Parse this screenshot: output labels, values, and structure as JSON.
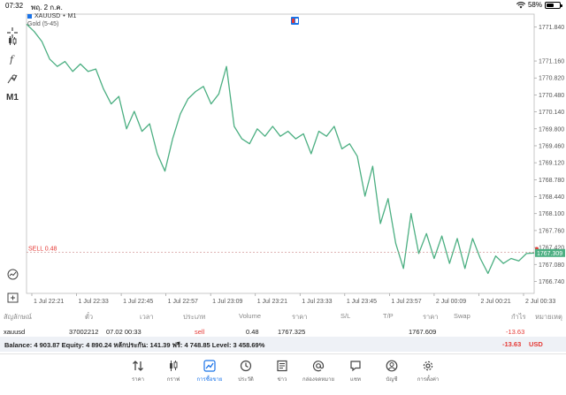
{
  "status_bar": {
    "time": "07:32",
    "date": "พฤ. 2 ก.ค.",
    "battery": "58%",
    "battery_level": 0.58
  },
  "chart": {
    "symbol": "XAUUSD",
    "timeframe": "M1",
    "separator": "•",
    "indicator": "Gold (5-45)",
    "line_color": "#4caf82",
    "sell_label": "SELL  0.48",
    "sell_price": 1767.325,
    "current_price_label": "1767.309",
    "price_ticks": [
      "1771.840",
      "1771.160",
      "1770.820",
      "1770.480",
      "1770.140",
      "1769.800",
      "1769.460",
      "1769.120",
      "1768.780",
      "1768.440",
      "1768.100",
      "1767.760",
      "1767.420",
      "1767.080",
      "1766.740"
    ],
    "price_tick_values": [
      1771.84,
      1771.16,
      1770.82,
      1770.48,
      1770.14,
      1769.8,
      1769.46,
      1769.12,
      1768.78,
      1768.44,
      1768.1,
      1767.76,
      1767.42,
      1767.08,
      1766.74
    ],
    "time_ticks": [
      "1 Jul 22:21",
      "1 Jul 22:33",
      "1 Jul 22:45",
      "1 Jul 22:57",
      "1 Jul 23:09",
      "1 Jul 23:21",
      "1 Jul 23:33",
      "1 Jul 23:45",
      "1 Jul 23:57",
      "2 Jul 00:09",
      "2 Jul 00:21",
      "2 Jul 00:33"
    ],
    "price_range": [
      1766.5,
      1772.1
    ]
  },
  "chart_data": {
    "type": "line",
    "x_range": [
      0,
      132
    ],
    "ylim": [
      1766.5,
      1772.1
    ],
    "series": [
      {
        "x": [
          0,
          2,
          4,
          6,
          8,
          10,
          12,
          14,
          16,
          18,
          20,
          22,
          24,
          26,
          28,
          30,
          32,
          34,
          36,
          38,
          40,
          42,
          44,
          46,
          48,
          50,
          52,
          54,
          56,
          58,
          60,
          62,
          64,
          66,
          68,
          70,
          72,
          74,
          76,
          78,
          80,
          82,
          84,
          86,
          88,
          90,
          92,
          94,
          96,
          98,
          100,
          102,
          104,
          106,
          108,
          110,
          112,
          114,
          116,
          118,
          120,
          122,
          124,
          126,
          128,
          130,
          132
        ],
        "y": [
          1771.9,
          1771.75,
          1771.55,
          1771.2,
          1771.05,
          1771.15,
          1770.95,
          1771.1,
          1770.95,
          1771.0,
          1770.6,
          1770.3,
          1770.45,
          1769.8,
          1770.15,
          1769.75,
          1769.9,
          1769.3,
          1768.95,
          1769.6,
          1770.1,
          1770.4,
          1770.55,
          1770.65,
          1770.3,
          1770.5,
          1771.05,
          1769.85,
          1769.6,
          1769.5,
          1769.8,
          1769.65,
          1769.85,
          1769.65,
          1769.75,
          1769.6,
          1769.7,
          1769.3,
          1769.75,
          1769.65,
          1769.85,
          1769.4,
          1769.5,
          1769.25,
          1768.45,
          1769.05,
          1767.9,
          1768.4,
          1767.5,
          1767.0,
          1768.1,
          1767.3,
          1767.7,
          1767.2,
          1767.65,
          1767.1,
          1767.6,
          1767.0,
          1767.6,
          1767.2,
          1766.9,
          1767.25,
          1767.1,
          1767.2,
          1767.15,
          1767.3,
          1767.31
        ]
      }
    ]
  },
  "toolbar": {
    "items": [
      "crosshair-icon",
      "candles-icon",
      "function-icon",
      "objects-icon",
      "M1"
    ]
  },
  "table": {
    "headers": [
      "สัญลักษณ์",
      "ตั๋ว",
      "เวลา",
      "ประเภท",
      "Volume",
      "ราคา",
      "S/L",
      "T/P",
      "ราคา",
      "Swap",
      "กำไร",
      "หมายเหตุ"
    ],
    "row": {
      "symbol": "xauusd",
      "ticket": "37002212",
      "time": "07.02 00:33",
      "type": "sell",
      "volume": "0.48",
      "price_open": "1767.325",
      "sl": "",
      "tp": "",
      "price_current": "1767.609",
      "swap": "",
      "profit": "-13.63",
      "comment": ""
    }
  },
  "balance": {
    "text": "Balance: 4 903.87 Equity: 4 890.24 หลักประกัน: 141.39 ฟรี: 4 748.85 Level: 3 458.69%",
    "total": "-13.63",
    "currency": "USD"
  },
  "nav": {
    "items": [
      {
        "label": "ราคา",
        "icon": "quotes-icon"
      },
      {
        "label": "กราฟ",
        "icon": "chart-icon"
      },
      {
        "label": "การซื้อขาย",
        "icon": "trade-icon",
        "active": true
      },
      {
        "label": "ประวัติ",
        "icon": "history-icon"
      },
      {
        "label": "ข่าว",
        "icon": "news-icon"
      },
      {
        "label": "กล่องจดหมาย",
        "icon": "mailbox-icon"
      },
      {
        "label": "แชท",
        "icon": "chat-icon"
      },
      {
        "label": "บัญชี",
        "icon": "account-icon"
      },
      {
        "label": "การตั้งค่า",
        "icon": "settings-icon"
      }
    ]
  }
}
